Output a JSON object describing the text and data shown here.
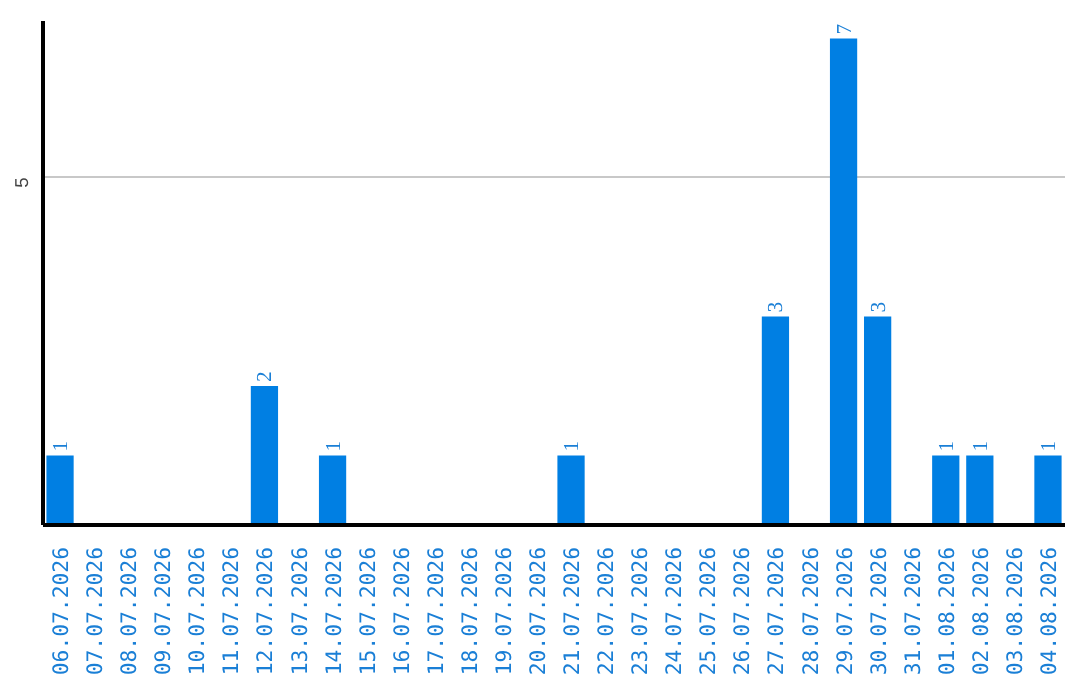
{
  "chart_data": {
    "type": "bar",
    "categories": [
      "06.07.2026",
      "07.07.2026",
      "08.07.2026",
      "09.07.2026",
      "10.07.2026",
      "11.07.2026",
      "12.07.2026",
      "13.07.2026",
      "14.07.2026",
      "15.07.2026",
      "16.07.2026",
      "17.07.2026",
      "18.07.2026",
      "19.07.2026",
      "20.07.2026",
      "21.07.2026",
      "22.07.2026",
      "23.07.2026",
      "24.07.2026",
      "25.07.2026",
      "26.07.2026",
      "27.07.2026",
      "28.07.2026",
      "29.07.2026",
      "30.07.2026",
      "31.07.2026",
      "01.08.2026",
      "02.08.2026",
      "03.08.2026",
      "04.08.2026"
    ],
    "values": [
      1,
      0,
      0,
      0,
      0,
      0,
      2,
      0,
      1,
      0,
      0,
      0,
      0,
      0,
      0,
      1,
      0,
      0,
      0,
      0,
      0,
      3,
      0,
      7,
      3,
      0,
      1,
      1,
      0,
      1
    ],
    "value_labels": [
      "1",
      null,
      null,
      null,
      null,
      null,
      "2",
      null,
      "1",
      null,
      null,
      null,
      null,
      null,
      null,
      "1",
      null,
      null,
      null,
      null,
      null,
      "3",
      null,
      "7",
      "3",
      null,
      "1",
      "1",
      null,
      "1"
    ],
    "color": "#007fe3",
    "ylim": [
      0,
      7.25
    ],
    "yticks": [
      5
    ],
    "grid": "y"
  }
}
